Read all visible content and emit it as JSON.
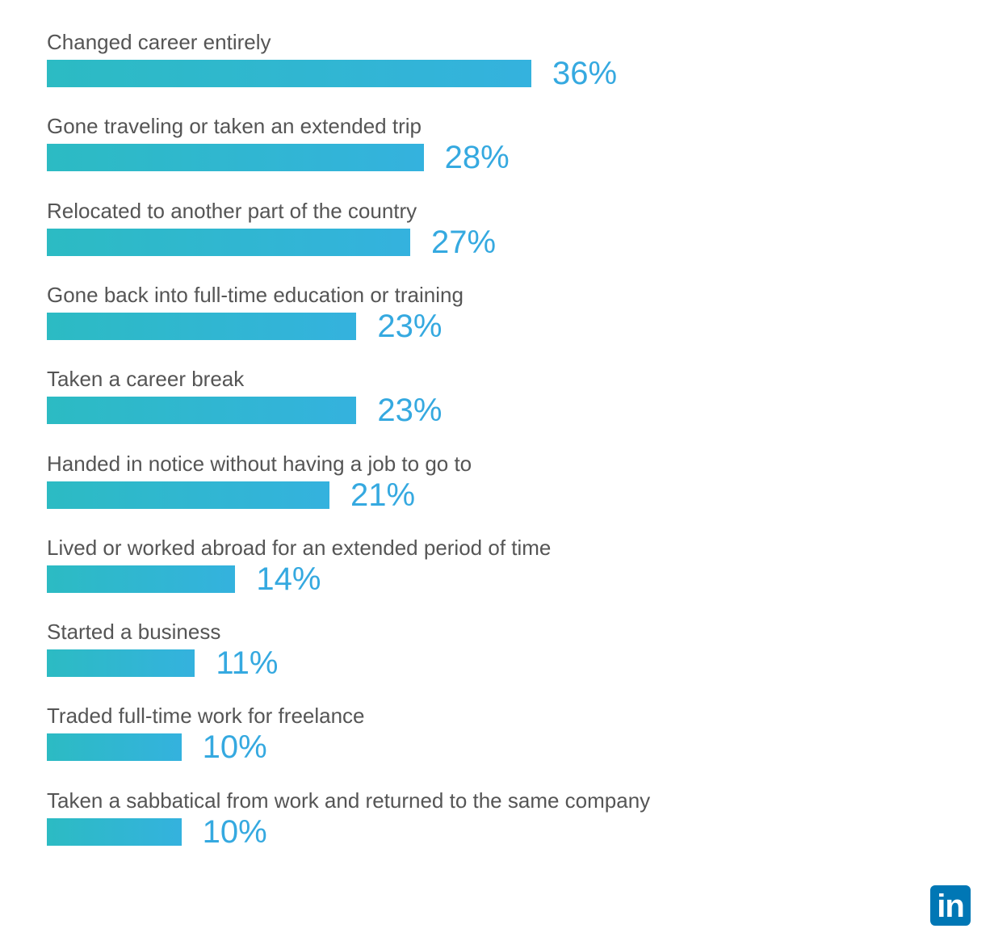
{
  "chart_data": {
    "type": "bar",
    "orientation": "horizontal",
    "categories": [
      "Changed career entirely",
      "Gone traveling or taken an extended trip",
      "Relocated to another part of the country",
      "Gone back into full-time education or training",
      "Taken a career break",
      "Handed in notice without having a job to go to",
      "Lived or worked abroad for an extended period of time",
      "Started a business",
      "Traded full-time work for freelance",
      "Taken a sabbatical from work and returned to the same company"
    ],
    "values": [
      36,
      28,
      27,
      23,
      23,
      21,
      14,
      11,
      10,
      10
    ],
    "value_labels": [
      "36%",
      "28%",
      "27%",
      "23%",
      "23%",
      "21%",
      "14%",
      "11%",
      "10%",
      "10%"
    ],
    "unit": "%",
    "title": "",
    "xlabel": "",
    "ylabel": "",
    "grid": false,
    "legend": "none"
  },
  "colors": {
    "bar_start": "#2cbbc3",
    "bar_end": "#34b2de",
    "value_text": "#35a9e0",
    "label_text": "#555555",
    "brand": "#0077b5"
  },
  "logo": {
    "text": "in",
    "icon": "linkedin-icon"
  }
}
